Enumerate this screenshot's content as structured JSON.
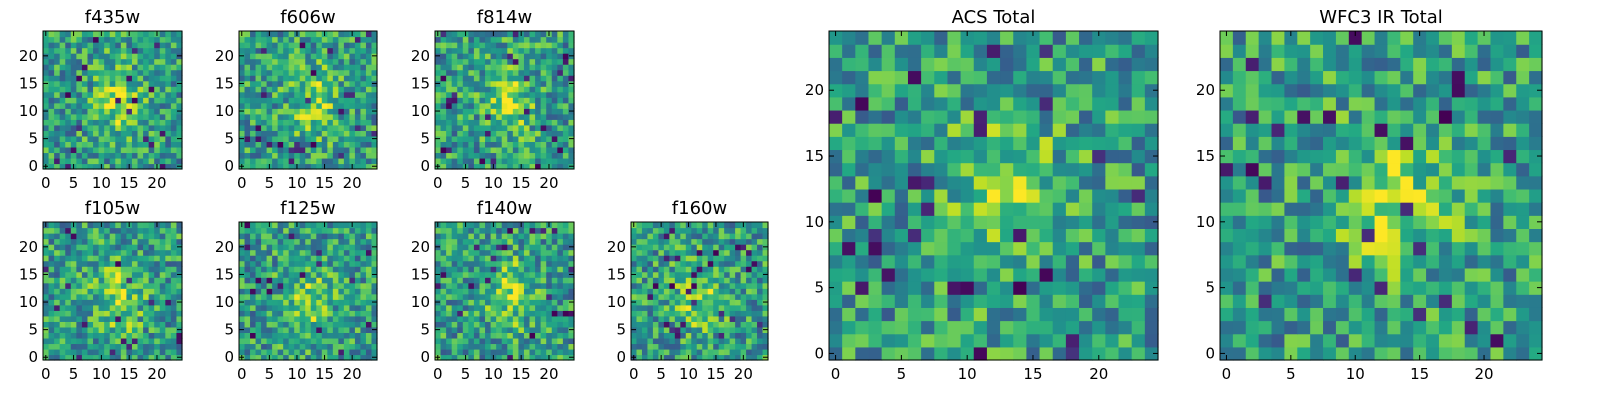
{
  "figure": {
    "type": "heatmap-grid",
    "colormap": "viridis"
  },
  "chart_data": [
    {
      "type": "heatmap",
      "title": "f435w",
      "grid_size": [
        25,
        25
      ],
      "xlim": [
        -0.5,
        24.5
      ],
      "ylim": [
        -0.5,
        24.5
      ],
      "xticks": [
        0,
        5,
        10,
        15,
        20
      ],
      "yticks": [
        0,
        5,
        10,
        15,
        20
      ],
      "x_tick_labels": [
        "0",
        "5",
        "10",
        "15",
        "20"
      ],
      "y_tick_labels": [
        "0",
        "5",
        "10",
        "15",
        "20"
      ],
      "grid": false,
      "values_pattern": "noisy field with faint central source"
    },
    {
      "type": "heatmap",
      "title": "f606w",
      "grid_size": [
        25,
        25
      ],
      "xlim": [
        -0.5,
        24.5
      ],
      "ylim": [
        -0.5,
        24.5
      ],
      "xticks": [
        0,
        5,
        10,
        15,
        20
      ],
      "yticks": [
        0,
        5,
        10,
        15,
        20
      ],
      "x_tick_labels": [
        "0",
        "5",
        "10",
        "15",
        "20"
      ],
      "y_tick_labels": [
        "0",
        "5",
        "10",
        "15",
        "20"
      ],
      "grid": false,
      "values_pattern": "noisy field with central source near (13,12)"
    },
    {
      "type": "heatmap",
      "title": "f814w",
      "grid_size": [
        25,
        25
      ],
      "xlim": [
        -0.5,
        24.5
      ],
      "ylim": [
        -0.5,
        24.5
      ],
      "xticks": [
        0,
        5,
        10,
        15,
        20
      ],
      "yticks": [
        0,
        5,
        10,
        15,
        20
      ],
      "x_tick_labels": [
        "0",
        "5",
        "10",
        "15",
        "20"
      ],
      "y_tick_labels": [
        "0",
        "5",
        "10",
        "15",
        "20"
      ],
      "grid": false,
      "values_pattern": "noisy field with central source near (13,12)"
    },
    {
      "type": "heatmap",
      "title": "f105w",
      "grid_size": [
        25,
        25
      ],
      "xlim": [
        -0.5,
        24.5
      ],
      "ylim": [
        -0.5,
        24.5
      ],
      "xticks": [
        0,
        5,
        10,
        15,
        20
      ],
      "yticks": [
        0,
        5,
        10,
        15,
        20
      ],
      "x_tick_labels": [
        "0",
        "5",
        "10",
        "15",
        "20"
      ],
      "y_tick_labels": [
        "0",
        "5",
        "10",
        "15",
        "20"
      ],
      "grid": false,
      "values_pattern": "noisy field with central source near (13,11)"
    },
    {
      "type": "heatmap",
      "title": "f125w",
      "grid_size": [
        25,
        25
      ],
      "xlim": [
        -0.5,
        24.5
      ],
      "ylim": [
        -0.5,
        24.5
      ],
      "xticks": [
        0,
        5,
        10,
        15,
        20
      ],
      "yticks": [
        0,
        5,
        10,
        15,
        20
      ],
      "x_tick_labels": [
        "0",
        "5",
        "10",
        "15",
        "20"
      ],
      "y_tick_labels": [
        "0",
        "5",
        "10",
        "15",
        "20"
      ],
      "grid": false,
      "values_pattern": "noisy field with central source near (12,10)"
    },
    {
      "type": "heatmap",
      "title": "f140w",
      "grid_size": [
        25,
        25
      ],
      "xlim": [
        -0.5,
        24.5
      ],
      "ylim": [
        -0.5,
        24.5
      ],
      "xticks": [
        0,
        5,
        10,
        15,
        20
      ],
      "yticks": [
        0,
        5,
        10,
        15,
        20
      ],
      "x_tick_labels": [
        "0",
        "5",
        "10",
        "15",
        "20"
      ],
      "y_tick_labels": [
        "0",
        "5",
        "10",
        "15",
        "20"
      ],
      "grid": false,
      "values_pattern": "noisy field with central source near (13,12)"
    },
    {
      "type": "heatmap",
      "title": "f160w",
      "grid_size": [
        25,
        25
      ],
      "xlim": [
        -0.5,
        24.5
      ],
      "ylim": [
        -0.5,
        24.5
      ],
      "xticks": [
        0,
        5,
        10,
        15,
        20
      ],
      "yticks": [
        0,
        5,
        10,
        15,
        20
      ],
      "x_tick_labels": [
        "0",
        "5",
        "10",
        "15",
        "20"
      ],
      "y_tick_labels": [
        "0",
        "5",
        "10",
        "15",
        "20"
      ],
      "grid": false,
      "values_pattern": "noisy field with central source near (12,11)"
    },
    {
      "type": "heatmap",
      "title": "ACS Total",
      "grid_size": [
        25,
        25
      ],
      "xlim": [
        -0.5,
        24.5
      ],
      "ylim": [
        -0.5,
        24.5
      ],
      "xticks": [
        0,
        5,
        10,
        15,
        20
      ],
      "yticks": [
        0,
        5,
        10,
        15,
        20
      ],
      "x_tick_labels": [
        "0",
        "5",
        "10",
        "15",
        "20"
      ],
      "y_tick_labels": [
        "0",
        "5",
        "10",
        "15",
        "20"
      ],
      "grid": false,
      "values_pattern": "noisy field with central source near (13,12)"
    },
    {
      "type": "heatmap",
      "title": "WFC3 IR Total",
      "grid_size": [
        25,
        25
      ],
      "xlim": [
        -0.5,
        24.5
      ],
      "ylim": [
        -0.5,
        24.5
      ],
      "xticks": [
        0,
        5,
        10,
        15,
        20
      ],
      "yticks": [
        0,
        5,
        10,
        15,
        20
      ],
      "x_tick_labels": [
        "0",
        "5",
        "10",
        "15",
        "20"
      ],
      "y_tick_labels": [
        "0",
        "5",
        "10",
        "15",
        "20"
      ],
      "grid": false,
      "values_pattern": "noisy field with central source near (13,12)"
    }
  ]
}
